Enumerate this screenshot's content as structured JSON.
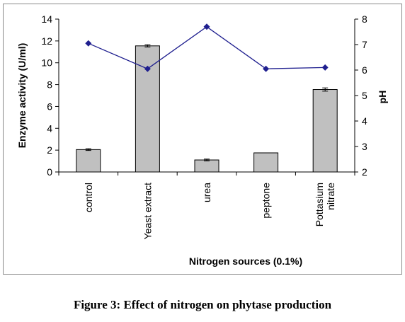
{
  "figure": {
    "caption": "Figure 3: Effect of nitrogen on phytase production"
  },
  "chart_data": {
    "type": "bar",
    "categories": [
      [
        "control"
      ],
      [
        "Yeast extract"
      ],
      [
        "urea"
      ],
      [
        "peptone"
      ],
      [
        "Pottasium",
        "nitrate"
      ]
    ],
    "series": [
      {
        "axis": "left",
        "type": "bar",
        "color": "#c0c0c0",
        "values": [
          2.05,
          11.55,
          1.1,
          1.75,
          7.55
        ],
        "errors": [
          0.08,
          0.1,
          0.08,
          0.0,
          0.15
        ]
      },
      {
        "axis": "right",
        "type": "line",
        "color": "#1f1f8f",
        "values": [
          7.05,
          6.05,
          7.7,
          6.05,
          6.1
        ]
      }
    ],
    "xlabel": "Nitrogen sources (0.1%)",
    "ylabel": "Enzyme activity  (U/ml)",
    "y2label": "pH",
    "ylim": [
      0,
      14
    ],
    "y2lim": [
      2,
      8
    ],
    "yticks": [
      "0",
      "2",
      "4",
      "6",
      "8",
      "10",
      "12",
      "14"
    ],
    "y2ticks": [
      "2",
      "3",
      "4",
      "5",
      "6",
      "7",
      "8"
    ],
    "grid": false,
    "legend": "none"
  }
}
